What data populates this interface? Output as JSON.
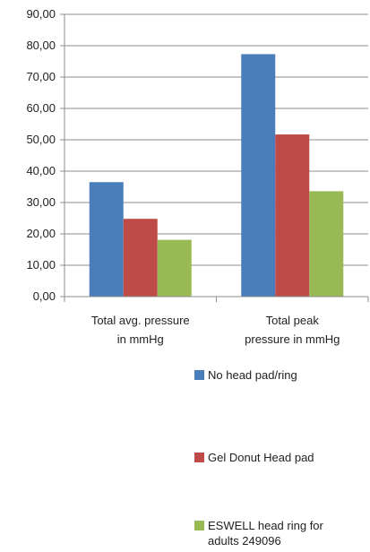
{
  "chart_data": {
    "type": "bar",
    "categories": [
      "Total avg. pressure in mmHg",
      "Total peak pressure  in mmHg"
    ],
    "category_labels": [
      [
        "Total avg. pressure",
        "in mmHg"
      ],
      [
        "Total peak",
        "pressure  in mmHg"
      ]
    ],
    "series": [
      {
        "name": "No head pad/ring",
        "values": [
          36.5,
          77.3
        ],
        "color": "#4a7ebb"
      },
      {
        "name": "Gel Donut Head pad",
        "values": [
          24.8,
          51.7
        ],
        "color": "#be4b48"
      },
      {
        "name": "ESWELL head ring for adults 249096",
        "values": [
          18.1,
          33.6
        ],
        "color": "#98b954"
      }
    ],
    "ylim": [
      0,
      90
    ],
    "yticks": [
      "0,00",
      "10,00",
      "20,00",
      "30,00",
      "40,00",
      "50,00",
      "60,00",
      "70,00",
      "80,00",
      "90,00"
    ],
    "grid": true,
    "legend_position": "bottom-right"
  },
  "legend": {
    "items": [
      {
        "label": "No head pad/ring",
        "color": "#4a7ebb"
      },
      {
        "label": "Gel Donut Head pad",
        "color": "#be4b48"
      },
      {
        "label": "ESWELL head ring for\nadults 249096",
        "color": "#98b954"
      }
    ]
  }
}
